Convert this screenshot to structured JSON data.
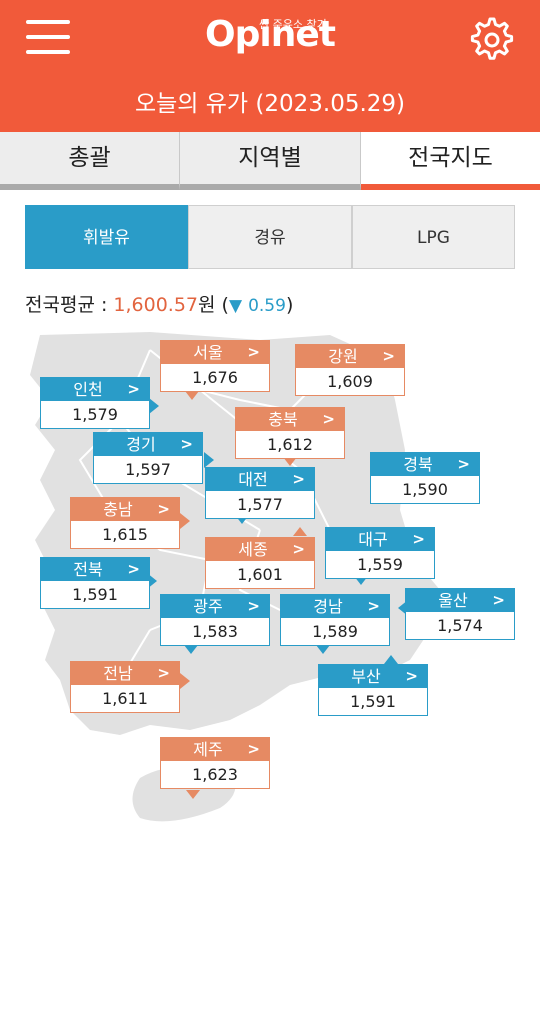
{
  "header": {
    "logo_tagline": "싼 주유소 찾기",
    "logo_text": "Opinet",
    "subtitle": "오늘의 유가 (2023.05.29)",
    "brand_color": "#f15a3a"
  },
  "tabs": [
    {
      "label": "총괄",
      "active": false
    },
    {
      "label": "지역별",
      "active": false
    },
    {
      "label": "전국지도",
      "active": true
    }
  ],
  "fuel_types": [
    {
      "label": "휘발유",
      "active": true
    },
    {
      "label": "경유",
      "active": false
    },
    {
      "label": "LPG",
      "active": false
    }
  ],
  "national_average": {
    "label": "전국평균 : ",
    "value": "1,600.57",
    "unit": "원",
    "change_symbol": "▼",
    "change_value": "0.59"
  },
  "regions": [
    {
      "name": "서울",
      "price": "1,676",
      "color": "orange"
    },
    {
      "name": "강원",
      "price": "1,609",
      "color": "orange"
    },
    {
      "name": "인천",
      "price": "1,579",
      "color": "blue"
    },
    {
      "name": "충북",
      "price": "1,612",
      "color": "orange"
    },
    {
      "name": "경기",
      "price": "1,597",
      "color": "blue"
    },
    {
      "name": "대전",
      "price": "1,577",
      "color": "blue"
    },
    {
      "name": "경북",
      "price": "1,590",
      "color": "blue"
    },
    {
      "name": "충남",
      "price": "1,615",
      "color": "orange"
    },
    {
      "name": "세종",
      "price": "1,601",
      "color": "orange"
    },
    {
      "name": "대구",
      "price": "1,559",
      "color": "blue"
    },
    {
      "name": "전북",
      "price": "1,591",
      "color": "blue"
    },
    {
      "name": "광주",
      "price": "1,583",
      "color": "blue"
    },
    {
      "name": "경남",
      "price": "1,589",
      "color": "blue"
    },
    {
      "name": "울산",
      "price": "1,574",
      "color": "blue"
    },
    {
      "name": "전남",
      "price": "1,611",
      "color": "orange"
    },
    {
      "name": "부산",
      "price": "1,591",
      "color": "blue"
    },
    {
      "name": "제주",
      "price": "1,623",
      "color": "orange"
    }
  ],
  "icons": {
    "menu": "hamburger-menu-icon",
    "settings": "gear-icon",
    "chevron": "chevron-right-icon"
  }
}
